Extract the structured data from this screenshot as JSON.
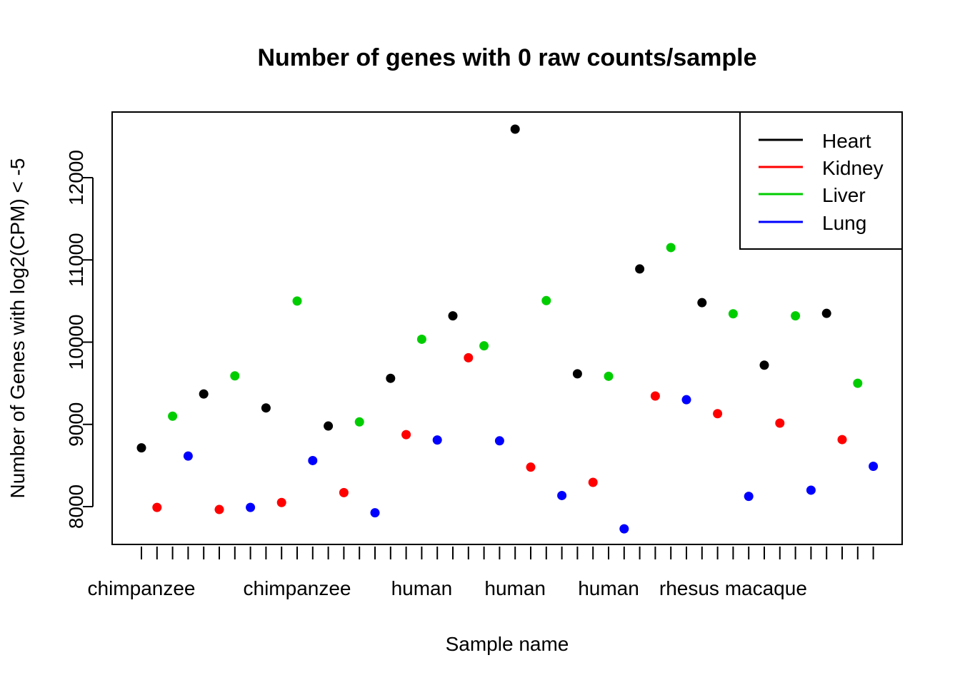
{
  "chart_data": {
    "type": "scatter",
    "title": "Number of genes with 0 raw counts/sample",
    "xlabel": "Sample name",
    "ylabel": "Number of Genes with log2(CPM) < -5",
    "ylim": [
      7550,
      12810
    ],
    "y_ticks": [
      "8000",
      "9000",
      "10000",
      "11000",
      "12000"
    ],
    "x_tick_count": 48,
    "x_tick_labels": [
      {
        "index": 1,
        "label": "chimpanzee"
      },
      {
        "index": 11,
        "label": "chimpanzee"
      },
      {
        "index": 19,
        "label": "human"
      },
      {
        "index": 25,
        "label": "human"
      },
      {
        "index": 31,
        "label": "human"
      },
      {
        "index": 39,
        "label": "rhesus macaque"
      }
    ],
    "grid": false,
    "legend_position": "top-right",
    "series": [
      {
        "name": "Heart",
        "color": "#000000",
        "x": [
          1,
          5,
          9,
          13,
          17,
          21,
          25,
          29,
          33,
          37,
          41,
          45
        ],
        "y": [
          8715,
          9370,
          9200,
          8980,
          9560,
          10320,
          12590,
          9615,
          10890,
          10480,
          9720,
          10350
        ]
      },
      {
        "name": "Kidney",
        "color": "#ff0000",
        "x": [
          2,
          6,
          10,
          14,
          18,
          22,
          26,
          30,
          34,
          38,
          42,
          46
        ],
        "y": [
          7990,
          7965,
          8050,
          8170,
          8875,
          9810,
          8480,
          8295,
          9345,
          9130,
          9015,
          8815
        ]
      },
      {
        "name": "Liver",
        "color": "#00cd00",
        "x": [
          3,
          7,
          11,
          15,
          19,
          23,
          27,
          31,
          35,
          39,
          43,
          47
        ],
        "y": [
          9100,
          9590,
          10500,
          9030,
          10035,
          9955,
          10505,
          9585,
          11150,
          10345,
          10320,
          9500
        ]
      },
      {
        "name": "Lung",
        "color": "#0000ff",
        "x": [
          4,
          8,
          12,
          16,
          20,
          24,
          28,
          32,
          36,
          40,
          44,
          48
        ],
        "y": [
          8615,
          7990,
          8560,
          7925,
          8810,
          8800,
          8135,
          7730,
          9300,
          8125,
          8200,
          8490
        ]
      }
    ]
  }
}
